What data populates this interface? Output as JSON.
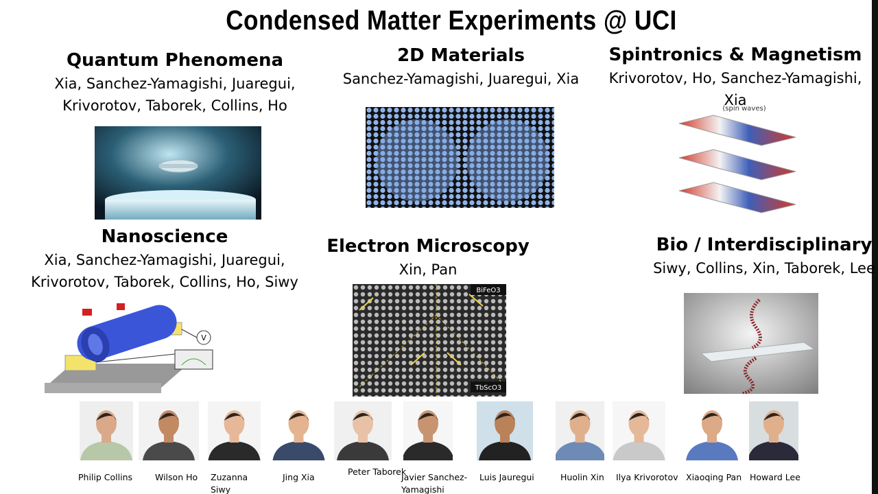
{
  "title": "Condensed Matter Experiments @ UCI",
  "sections": [
    {
      "heading": "Quantum Phenomena",
      "people": [
        "Xia, Sanchez-Yamagishi, Juaregui,",
        "Krivorotov, Taborek, Collins, Ho"
      ]
    },
    {
      "heading": "2D Materials",
      "people": [
        "Sanchez-Yamagishi, Juaregui, Xia"
      ]
    },
    {
      "heading": "Spintronics & Magnetism",
      "people": [
        "Krivorotov, Ho, Sanchez-Yamagishi,",
        "Xia"
      ],
      "image_caption": "(spin waves)"
    },
    {
      "heading": "Nanoscience",
      "people": [
        "Xia, Sanchez-Yamagishi, Juaregui,",
        "Krivorotov, Taborek, Collins, Ho, Siwy"
      ],
      "image_labels": [
        "V"
      ]
    },
    {
      "heading": "Electron Microscopy",
      "people": [
        "Xin, Pan"
      ],
      "image_labels": [
        "BiFeO3",
        "TbScO3"
      ]
    },
    {
      "heading": "Bio / Interdisciplinary",
      "people": [
        "Siwy, Collins, Xin, Taborek, Lee"
      ]
    }
  ],
  "faculty": [
    "Philip Collins",
    "Wilson Ho",
    "Zuzanna Siwy",
    "Jing Xia",
    "Peter Taborek",
    "Javier Sanchez-Yamagishi",
    "Luis Jauregui",
    "Huolin Xin",
    "Ilya Krivorotov",
    "Xiaoqing Pan",
    "Howard Lee"
  ]
}
